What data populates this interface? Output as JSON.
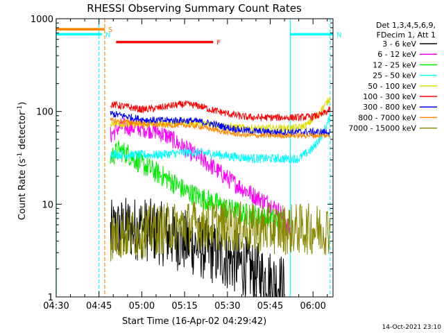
{
  "chart_data": {
    "type": "line",
    "title": "RHESSI Observing Summary Count Rates",
    "xlabel": "Start Time (16-Apr-02 04:29:42)",
    "ylabel_main": "Count Rate (s",
    "ylabel_sup1": "-1",
    "ylabel_mid": " detector",
    "ylabel_sup2": "-1",
    "ylabel_end": ")",
    "y_scale": "log",
    "ylim": [
      1,
      1000
    ],
    "xlim": [
      "04:30",
      "06:07"
    ],
    "x_ticks": [
      "04:30",
      "04:45",
      "05:00",
      "05:15",
      "05:30",
      "05:45",
      "06:00"
    ],
    "y_ticks": [
      "1",
      "10",
      "100",
      "1000"
    ],
    "legend": {
      "placement": "right",
      "header": [
        "Det 1,3,4,5,6,9,",
        "FDecim 1, Att 1"
      ],
      "entries": [
        {
          "label": "3 - 6 keV",
          "color": "#000000"
        },
        {
          "label": "6 - 12 keV",
          "color": "#ff00ff"
        },
        {
          "label": "12 - 25 keV",
          "color": "#00ee00"
        },
        {
          "label": "25 - 50 keV",
          "color": "#00ffff"
        },
        {
          "label": "50 - 100 keV",
          "color": "#dddd00"
        },
        {
          "label": "100 - 300 keV",
          "color": "#ff0000"
        },
        {
          "label": "300 - 800 keV",
          "color": "#0000ff"
        },
        {
          "label": "800 - 7000 keV",
          "color": "#ff8800"
        },
        {
          "label": "7000 - 15000 keV",
          "color": "#888800"
        }
      ]
    },
    "flags": [
      {
        "label": "S",
        "color": "#ff8800",
        "start": "04:30",
        "end": "04:47",
        "level": 770
      },
      {
        "label": "N",
        "color": "#00ffff",
        "start": "04:30",
        "end": "04:46",
        "level": 680
      },
      {
        "label": "N",
        "color": "#00ffff",
        "start": "05:52",
        "end": "06:07",
        "level": 680
      },
      {
        "label": "F",
        "color": "#ff0000",
        "start": "04:51",
        "end": "05:25",
        "level": 560
      }
    ],
    "vlines": [
      {
        "time": "04:30",
        "color": "#00ffff",
        "dashed": false
      },
      {
        "time": "04:45",
        "color": "#00ffff",
        "dashed": true
      },
      {
        "time": "04:47",
        "color": "#ff8800",
        "dashed": true
      },
      {
        "time": "05:52",
        "color": "#00ffff",
        "dashed": false
      },
      {
        "time": "06:06",
        "color": "#00ffff",
        "dashed": true
      }
    ],
    "series": [
      {
        "name": "3 - 6 keV",
        "color": "#000000",
        "x": [
          "04:49",
          "04:55",
          "05:00",
          "05:05",
          "05:10",
          "05:15",
          "05:20",
          "05:25",
          "05:30",
          "05:35",
          "05:40",
          "05:45",
          "05:50"
        ],
        "y": [
          5,
          5.5,
          5.5,
          5,
          4.5,
          4,
          3.5,
          3,
          2.6,
          2.2,
          1.8,
          1.5,
          1.3
        ]
      },
      {
        "name": "6 - 12 keV",
        "color": "#ff00ff",
        "x": [
          "04:49",
          "04:52",
          "04:55",
          "05:00",
          "05:05",
          "05:10",
          "05:15",
          "05:20",
          "05:25",
          "05:30",
          "05:35",
          "05:40",
          "05:45",
          "05:48",
          "05:50",
          "05:52"
        ],
        "y": [
          55,
          68,
          68,
          66,
          62,
          52,
          40,
          32,
          25,
          19,
          15,
          12,
          10,
          8.5,
          7,
          5
        ]
      },
      {
        "name": "12 - 25 keV",
        "color": "#00ee00",
        "x": [
          "04:49",
          "04:52",
          "04:55",
          "05:00",
          "05:05",
          "05:10",
          "05:15",
          "05:20",
          "05:25",
          "05:30",
          "05:35",
          "05:40",
          "05:45",
          "05:50"
        ],
        "y": [
          32,
          38,
          35,
          27,
          22,
          18,
          14,
          12,
          10.5,
          9,
          8,
          7.5,
          7,
          6.5
        ]
      },
      {
        "name": "25 - 50 keV",
        "color": "#00ffff",
        "x": [
          "04:49",
          "04:55",
          "05:00",
          "05:05",
          "05:10",
          "05:15",
          "05:20",
          "05:25",
          "05:30",
          "05:35",
          "05:40",
          "05:45",
          "05:50",
          "05:55",
          "06:00",
          "06:03",
          "06:06"
        ],
        "y": [
          35,
          34,
          34,
          34,
          35,
          36,
          36,
          35,
          33,
          32,
          31,
          31,
          31,
          31,
          40,
          55,
          85
        ]
      },
      {
        "name": "50 - 100 keV",
        "color": "#dddd00",
        "x": [
          "04:49",
          "04:55",
          "05:00",
          "05:05",
          "05:10",
          "05:15",
          "05:20",
          "05:25",
          "05:30",
          "05:35",
          "05:40",
          "05:45",
          "05:50",
          "05:55",
          "05:58",
          "06:02",
          "06:06"
        ],
        "y": [
          75,
          73,
          72,
          73,
          75,
          76,
          75,
          72,
          69,
          67,
          66,
          66,
          66,
          67,
          72,
          95,
          140
        ]
      },
      {
        "name": "100 - 300 keV",
        "color": "#ff0000",
        "x": [
          "04:49",
          "04:55",
          "05:00",
          "05:05",
          "05:10",
          "05:15",
          "05:20",
          "05:25",
          "05:30",
          "05:35",
          "05:40",
          "05:45",
          "05:50",
          "05:55",
          "06:00",
          "06:03",
          "06:06"
        ],
        "y": [
          120,
          112,
          105,
          108,
          115,
          120,
          115,
          103,
          95,
          88,
          86,
          86,
          86,
          86,
          88,
          92,
          105
        ]
      },
      {
        "name": "300 - 800 keV",
        "color": "#0000ff",
        "x": [
          "04:49",
          "04:55",
          "05:00",
          "05:05",
          "05:10",
          "05:15",
          "05:20",
          "05:25",
          "05:30",
          "05:35",
          "05:40",
          "05:45",
          "05:50",
          "05:55",
          "06:00",
          "06:06"
        ],
        "y": [
          95,
          88,
          82,
          80,
          80,
          80,
          78,
          73,
          67,
          63,
          61,
          60,
          60,
          60,
          60,
          60
        ]
      },
      {
        "name": "800 - 7000 keV",
        "color": "#ff8800",
        "x": [
          "04:49",
          "04:55",
          "05:00",
          "05:05",
          "05:10",
          "05:15",
          "05:20",
          "05:25",
          "05:30",
          "05:35",
          "05:40",
          "05:45",
          "05:50",
          "05:55",
          "06:00",
          "06:06"
        ],
        "y": [
          80,
          77,
          74,
          72,
          71,
          71,
          69,
          64,
          59,
          56,
          55,
          55,
          55,
          55,
          55,
          55
        ]
      },
      {
        "name": "7000 - 15000 keV",
        "color": "#888800",
        "x": [
          "04:49",
          "04:55",
          "05:00",
          "05:05",
          "05:10",
          "05:15",
          "05:20",
          "05:25",
          "05:30",
          "05:35",
          "05:40",
          "05:45",
          "05:50",
          "05:55",
          "06:00",
          "06:06"
        ],
        "y": [
          4.5,
          4.8,
          5,
          5.3,
          5.6,
          5.8,
          6,
          6,
          5.8,
          5.6,
          5.5,
          5.5,
          5.4,
          5.4,
          5.4,
          5.4
        ]
      }
    ],
    "footer_timestamp": "14-Oct-2021 23:10"
  }
}
